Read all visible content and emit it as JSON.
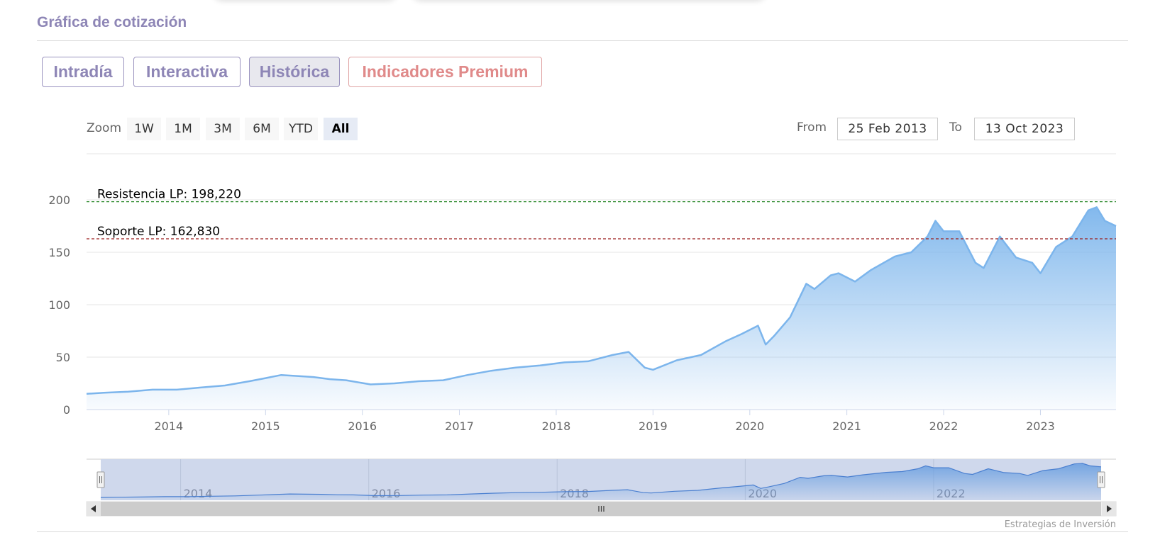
{
  "section": {
    "title": "Gráfica de cotización"
  },
  "tabs": [
    {
      "label": "Intradía",
      "active": false
    },
    {
      "label": "Interactiva",
      "active": false
    },
    {
      "label": "Histórica",
      "active": true
    },
    {
      "label": "Indicadores Premium",
      "active": false
    }
  ],
  "zoom": {
    "label": "Zoom",
    "options": [
      "1W",
      "1M",
      "3M",
      "6M",
      "YTD",
      "All"
    ],
    "selected": "All"
  },
  "range": {
    "from_label": "From",
    "from_value": "25 Feb 2013",
    "to_label": "To",
    "to_value": "13 Oct 2023"
  },
  "credits": "Estrategias de Inversión",
  "colors": {
    "accent": "#8e86b6",
    "premium": "#e08a8a",
    "series_line": "#7cb5ec",
    "resistance": "#2e8b2e",
    "support": "#9b1c1c"
  },
  "icons": {
    "scroll_left": "triangle-left-icon",
    "scroll_right": "triangle-right-icon",
    "scroll_grip": "grip-lines-icon",
    "handle": "navigator-handle-icon"
  },
  "chart_data": {
    "type": "area",
    "title": "",
    "xlabel": "",
    "ylabel": "",
    "ylim": [
      0,
      200
    ],
    "yticks": [
      "0",
      "50",
      "100",
      "150",
      "200"
    ],
    "xticks": [
      "2014",
      "2015",
      "2016",
      "2017",
      "2018",
      "2019",
      "2020",
      "2021",
      "2022",
      "2023"
    ],
    "navigator_ticks": [
      "2014",
      "2016",
      "2018",
      "2020",
      "2022"
    ],
    "x_range": [
      "2013-02-25",
      "2023-10-13"
    ],
    "grid": true,
    "legend": "none",
    "plot_lines": [
      {
        "label": "Resistencia LP: 198,220",
        "value": 198.22,
        "style": "dashed",
        "color": "#2e8b2e"
      },
      {
        "label": "Soporte LP: 162,830",
        "value": 162.83,
        "style": "dashed",
        "color": "#9b1c1c"
      }
    ],
    "series": [
      {
        "x": [
          "2013-02-25",
          "2013-05",
          "2013-08",
          "2013-11",
          "2014-02",
          "2014-05",
          "2014-08",
          "2014-11",
          "2015-01",
          "2015-03",
          "2015-05",
          "2015-07",
          "2015-09",
          "2015-11",
          "2016-02",
          "2016-05",
          "2016-08",
          "2016-11",
          "2017-02",
          "2017-05",
          "2017-08",
          "2017-11",
          "2018-02",
          "2018-05",
          "2018-08",
          "2018-10",
          "2018-12",
          "2019-01",
          "2019-04",
          "2019-07",
          "2019-10",
          "2019-12",
          "2020-02",
          "2020-03",
          "2020-04",
          "2020-06",
          "2020-08",
          "2020-09",
          "2020-11",
          "2020-12",
          "2021-02",
          "2021-04",
          "2021-07",
          "2021-09",
          "2021-11",
          "2021-12",
          "2022-01",
          "2022-03",
          "2022-05",
          "2022-06",
          "2022-08",
          "2022-10",
          "2022-12",
          "2023-01",
          "2023-03",
          "2023-05",
          "2023-07",
          "2023-08",
          "2023-09",
          "2023-10-13"
        ],
        "values": [
          15,
          16,
          17,
          19,
          19,
          21,
          23,
          27,
          30,
          33,
          32,
          31,
          29,
          28,
          24,
          25,
          27,
          28,
          33,
          37,
          40,
          42,
          45,
          46,
          52,
          55,
          40,
          38,
          47,
          52,
          65,
          72,
          80,
          62,
          70,
          88,
          120,
          115,
          128,
          130,
          122,
          133,
          146,
          150,
          165,
          180,
          170,
          170,
          140,
          135,
          165,
          145,
          140,
          130,
          155,
          165,
          190,
          193,
          180,
          175
        ]
      }
    ]
  }
}
